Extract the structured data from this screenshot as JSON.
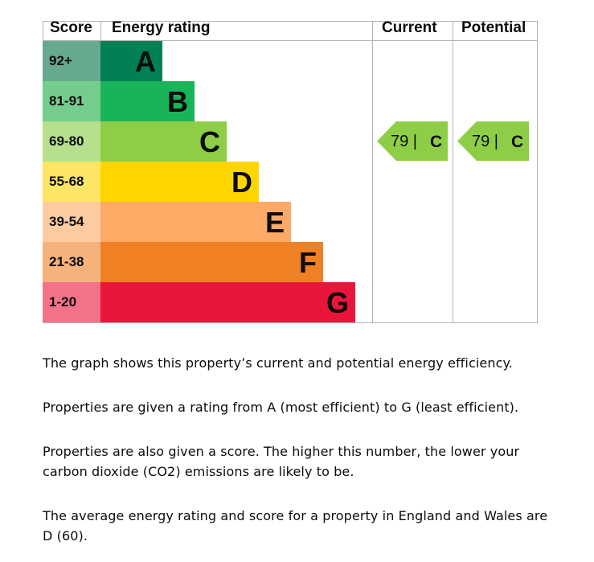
{
  "chart_data": {
    "type": "table",
    "headers": {
      "score": "Score",
      "rating": "Energy rating",
      "current": "Current",
      "potential": "Potential"
    },
    "bands": [
      {
        "letter": "A",
        "range": "92+",
        "color": "#008054",
        "light": "#67a98f"
      },
      {
        "letter": "B",
        "range": "81-91",
        "color": "#19b459",
        "light": "#75cd8d"
      },
      {
        "letter": "C",
        "range": "69-80",
        "color": "#8dce46",
        "light": "#b6e08c"
      },
      {
        "letter": "D",
        "range": "55-68",
        "color": "#ffd500",
        "light": "#ffe566"
      },
      {
        "letter": "E",
        "range": "39-54",
        "color": "#fcaa65",
        "light": "#fdcba1"
      },
      {
        "letter": "F",
        "range": "21-38",
        "color": "#ef8023",
        "light": "#f5b27b"
      },
      {
        "letter": "G",
        "range": "1-20",
        "color": "#e9153b",
        "light": "#f27289"
      }
    ],
    "current": {
      "score": 79,
      "letter": "C",
      "label": "79 |",
      "letter_label": "C"
    },
    "potential": {
      "score": 79,
      "letter": "C",
      "label": "79 |",
      "letter_label": "C"
    }
  },
  "text": {
    "p1": "The graph shows this property’s current and potential energy efficiency.",
    "p2": "Properties are given a rating from A (most efficient) to G (least efficient).",
    "p3": "Properties are also given a score. The higher this number, the lower your carbon dioxide (CO2) emissions are likely to be.",
    "p4": "The average energy rating and score for a property in England and Wales are D (60)."
  }
}
